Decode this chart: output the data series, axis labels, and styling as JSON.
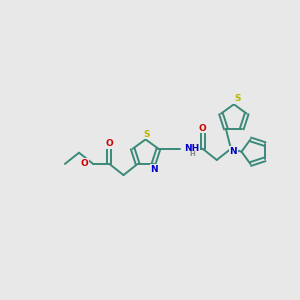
{
  "bg_color": "#e8e8e8",
  "bond_color": "#3a8a7a",
  "S_color": "#b8b800",
  "N_color": "#0000cc",
  "O_color": "#cc0000",
  "H_color": "#888888",
  "lw": 1.4,
  "fs": 6.5,
  "xlim": [
    0,
    10
  ],
  "ylim": [
    2,
    8
  ]
}
